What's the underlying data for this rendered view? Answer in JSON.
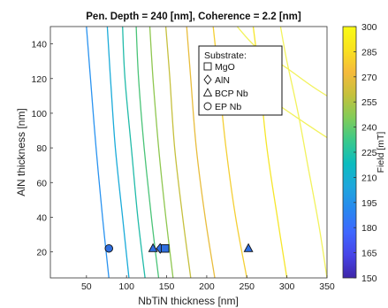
{
  "chart_data": {
    "type": "contour",
    "title": "Pen. Depth = 240 [nm],  Coherence = 2.2 [nm]",
    "xlabel": "NbTiN thickness [nm]",
    "ylabel": "AlN thickness [nm]",
    "xlim": [
      5,
      350
    ],
    "ylim": [
      5,
      150
    ],
    "xticks": [
      "50",
      "100",
      "150",
      "200",
      "250",
      "300",
      "350"
    ],
    "yticks": [
      "20",
      "40",
      "60",
      "80",
      "100",
      "120",
      "140"
    ],
    "colorbar": {
      "label": "Field [mT]",
      "range": [
        150,
        300
      ],
      "ticks": [
        "150",
        "165",
        "180",
        "195",
        "210",
        "225",
        "240",
        "255",
        "270",
        "285",
        "300"
      ],
      "colors": [
        "#3e26a8",
        "#4744e8",
        "#3f67ff",
        "#2888ef",
        "#1ea7dc",
        "#0cbcbf",
        "#39c98b",
        "#81cc59",
        "#c4c13c",
        "#f5ba3c",
        "#f9e21e",
        "#f9fb15"
      ]
    },
    "contours": [
      {
        "level": 165,
        "color": "#2a93f0",
        "points": [
          [
            78,
            5
          ],
          [
            70,
            40
          ],
          [
            62,
            80
          ],
          [
            55,
            120
          ],
          [
            50,
            150
          ]
        ]
      },
      {
        "level": 180,
        "color": "#1aabd9",
        "points": [
          [
            103,
            5
          ],
          [
            95,
            40
          ],
          [
            86,
            80
          ],
          [
            80,
            120
          ],
          [
            76,
            150
          ]
        ]
      },
      {
        "level": 195,
        "color": "#21bba9",
        "points": [
          [
            123,
            5
          ],
          [
            114,
            40
          ],
          [
            106,
            80
          ],
          [
            98,
            120
          ],
          [
            95,
            150
          ]
        ]
      },
      {
        "level": 210,
        "color": "#4ac478",
        "points": [
          [
            140,
            5
          ],
          [
            131,
            40
          ],
          [
            122,
            80
          ],
          [
            115,
            120
          ],
          [
            112,
            150
          ]
        ]
      },
      {
        "level": 225,
        "color": "#8fc750",
        "points": [
          [
            158,
            5
          ],
          [
            149,
            40
          ],
          [
            140,
            80
          ],
          [
            133,
            120
          ],
          [
            129,
            150
          ]
        ]
      },
      {
        "level": 240,
        "color": "#c6c03e",
        "points": [
          [
            180,
            5
          ],
          [
            170,
            40
          ],
          [
            160,
            80
          ],
          [
            154,
            120
          ],
          [
            149,
            150
          ]
        ]
      },
      {
        "level": 255,
        "color": "#e8bd3d",
        "points": [
          [
            210,
            5
          ],
          [
            198,
            40
          ],
          [
            187,
            80
          ],
          [
            180,
            120
          ],
          [
            175,
            150
          ]
        ]
      },
      {
        "level": 270,
        "color": "#f4cf34",
        "points": [
          [
            250,
            5
          ],
          [
            236,
            40
          ],
          [
            224,
            80
          ],
          [
            215,
            120
          ],
          [
            208,
            150
          ]
        ]
      },
      {
        "level": 285,
        "color": "#f6e62a",
        "points": [
          [
            300,
            5
          ],
          [
            288,
            40
          ],
          [
            275,
            80
          ],
          [
            266,
            120
          ],
          [
            258,
            150
          ]
        ]
      },
      {
        "level": 295,
        "color": "#f2f25c",
        "points": [
          [
            350,
            5
          ],
          [
            340,
            35
          ],
          [
            326,
            70
          ],
          [
            314,
            100
          ],
          [
            300,
            130
          ],
          [
            292,
            150
          ]
        ]
      }
    ],
    "contour_closed": [
      {
        "level": 298,
        "color": "#f2f25c",
        "points": [
          [
            215,
            130
          ],
          [
            250,
            118
          ],
          [
            292,
            104
          ],
          [
            330,
            92
          ],
          [
            350,
            86
          ]
        ]
      },
      {
        "level": 298,
        "color": "#f2f25c",
        "points": [
          [
            238,
            150
          ],
          [
            262,
            138
          ],
          [
            300,
            126
          ],
          [
            330,
            116
          ],
          [
            350,
            110
          ]
        ]
      }
    ],
    "points": [
      {
        "label": "EP Nb",
        "marker": "circle",
        "x": 78,
        "y": 22
      },
      {
        "label": "BCP Nb",
        "marker": "triangle",
        "x": 133,
        "y": 22
      },
      {
        "label": "AlN",
        "marker": "diamond",
        "x": 142,
        "y": 22
      },
      {
        "label": "MgO",
        "marker": "square",
        "x": 148,
        "y": 22
      },
      {
        "label": "BCP Nb",
        "marker": "triangle",
        "x": 252,
        "y": 22
      }
    ],
    "legend": {
      "title": "Substrate:",
      "position": "top-right",
      "entries": [
        {
          "marker": "square",
          "label": "MgO"
        },
        {
          "marker": "diamond",
          "label": "AlN"
        },
        {
          "marker": "triangle",
          "label": "BCP Nb"
        },
        {
          "marker": "circle",
          "label": "EP Nb"
        }
      ]
    },
    "marker_color": "#2f6fe0"
  }
}
